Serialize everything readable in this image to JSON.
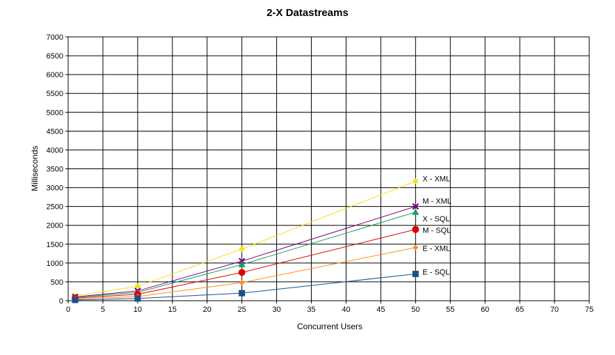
{
  "chart_data": {
    "type": "line",
    "title": "2-X Datastreams",
    "xlabel": "Concurrent Users",
    "ylabel": "Milliseconds",
    "xlim": [
      0,
      75
    ],
    "ylim": [
      0,
      7000
    ],
    "xticks": [
      0,
      5,
      10,
      15,
      20,
      25,
      30,
      35,
      40,
      45,
      50,
      55,
      60,
      65,
      70,
      75
    ],
    "yticks": [
      0,
      500,
      1000,
      1500,
      2000,
      2500,
      3000,
      3500,
      4000,
      4500,
      5000,
      5500,
      6000,
      6500,
      7000
    ],
    "grid": true,
    "legend": "labels at end of lines",
    "x": [
      1,
      10,
      25,
      50
    ],
    "series": [
      {
        "name": "X - XML",
        "values": [
          130,
          380,
          1370,
          3170
        ],
        "color": "#f5e11a",
        "marker": "star"
      },
      {
        "name": "M - XML",
        "values": [
          100,
          260,
          1050,
          2500
        ],
        "color": "#800080",
        "marker": "x"
      },
      {
        "name": "X - SQL",
        "values": [
          90,
          220,
          960,
          2350
        ],
        "color": "#1aa05a",
        "marker": "triangle"
      },
      {
        "name": "M - SQL",
        "values": [
          70,
          170,
          750,
          1890
        ],
        "color": "#e00000",
        "marker": "circle"
      },
      {
        "name": "E - XML",
        "values": [
          50,
          110,
          480,
          1410
        ],
        "color": "#ff8c1a",
        "marker": "diamond"
      },
      {
        "name": "E - SQL",
        "values": [
          20,
          60,
          200,
          710
        ],
        "color": "#1a4f8a",
        "marker": "square"
      }
    ]
  }
}
